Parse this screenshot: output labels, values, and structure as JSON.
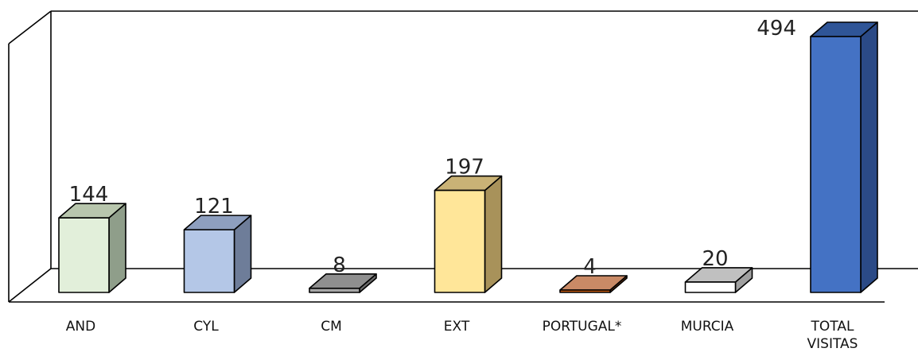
{
  "chart_data": {
    "type": "bar",
    "style": "3d-column",
    "title": "",
    "xlabel": "",
    "ylabel": "",
    "ylim": [
      0,
      494
    ],
    "grid": false,
    "legend": "none",
    "categories": [
      {
        "label": [
          "AND"
        ],
        "value": 144,
        "front": "#e2efda",
        "side": "#8f9e8a",
        "top": "#b8c6ad"
      },
      {
        "label": [
          "CYL"
        ],
        "value": 121,
        "front": "#b4c7e7",
        "side": "#6e7d99",
        "top": "#8e9fbf"
      },
      {
        "label": [
          "CM"
        ],
        "value": 8,
        "front": "#a6a6a6",
        "side": "#6b6b6b",
        "top": "#8f8f8f"
      },
      {
        "label": [
          "EXT"
        ],
        "value": 197,
        "front": "#ffe699",
        "side": "#a8925a",
        "top": "#c9b276"
      },
      {
        "label": [
          "PORTUGAL*"
        ],
        "value": 4,
        "front": "#c55a11",
        "side": "#7a3a10",
        "top": "#c98a66"
      },
      {
        "label": [
          "MURCIA"
        ],
        "value": 20,
        "front": "#ffffff",
        "side": "#a0a0a0",
        "top": "#c0c0c0"
      },
      {
        "label": [
          "TOTAL",
          "VISITAS"
        ],
        "value": 494,
        "front": "#4472c4",
        "side": "#2b4a86",
        "top": "#2f5597"
      }
    ]
  }
}
